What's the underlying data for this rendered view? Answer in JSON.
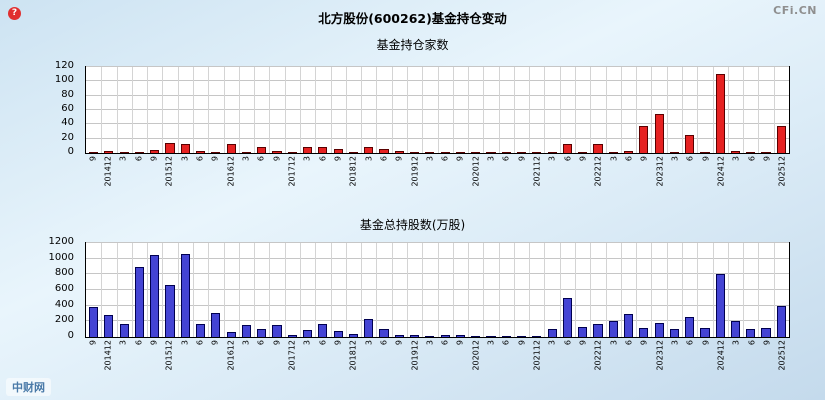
{
  "header": {
    "title": "北方股份(600262)基金持仓变动",
    "brand": "CFi.CN",
    "watermark": "中财网",
    "help_icon_glyph": "?"
  },
  "chart_data": [
    {
      "type": "bar",
      "title": "基金持仓家数",
      "xlabel": "",
      "ylabel": "",
      "ylim": [
        0,
        120
      ],
      "yticks": [
        0,
        20,
        40,
        60,
        80,
        100,
        120
      ],
      "grid": true,
      "legend": "none",
      "bar_color": "#e62222",
      "bar_border": "#5a0000",
      "categories": [
        "9",
        "201412",
        "3",
        "6",
        "9",
        "201512",
        "3",
        "6",
        "9",
        "201612",
        "3",
        "6",
        "9",
        "201712",
        "3",
        "6",
        "9",
        "201812",
        "3",
        "6",
        "9",
        "201912",
        "3",
        "6",
        "9",
        "202012",
        "3",
        "6",
        "9",
        "202112",
        "3",
        "6",
        "9",
        "202212",
        "3",
        "6",
        "9",
        "202312",
        "3",
        "6",
        "9",
        "202412",
        "3",
        "6",
        "9",
        "202512"
      ],
      "values": [
        2,
        3,
        1,
        2,
        4,
        14,
        12,
        3,
        1,
        13,
        2,
        8,
        3,
        1,
        9,
        8,
        5,
        2,
        8,
        5,
        3,
        2,
        1,
        1,
        2,
        2,
        1,
        1,
        1,
        1,
        2,
        12,
        2,
        12,
        2,
        3,
        38,
        55,
        2,
        25,
        2,
        110,
        3,
        2,
        2,
        38
      ]
    },
    {
      "type": "bar",
      "title": "基金总持股数(万股)",
      "xlabel": "",
      "ylabel": "",
      "ylim": [
        0,
        1200
      ],
      "yticks": [
        0,
        200,
        400,
        600,
        800,
        1000,
        1200
      ],
      "grid": true,
      "legend": "none",
      "bar_color": "#4444d4",
      "bar_border": "#000050",
      "categories": [
        "9",
        "201412",
        "3",
        "6",
        "9",
        "201512",
        "3",
        "6",
        "9",
        "201612",
        "3",
        "6",
        "9",
        "201712",
        "3",
        "6",
        "9",
        "201812",
        "3",
        "6",
        "9",
        "201912",
        "3",
        "6",
        "9",
        "202012",
        "3",
        "6",
        "9",
        "202112",
        "3",
        "6",
        "9",
        "202212",
        "3",
        "6",
        "9",
        "202312",
        "3",
        "6",
        "9",
        "202412",
        "3",
        "6",
        "9",
        "202512"
      ],
      "values": [
        380,
        280,
        170,
        900,
        1050,
        660,
        1060,
        170,
        310,
        60,
        150,
        100,
        150,
        30,
        90,
        160,
        80,
        40,
        230,
        100,
        30,
        20,
        15,
        20,
        25,
        15,
        10,
        10,
        10,
        15,
        100,
        500,
        130,
        160,
        200,
        290,
        120,
        180,
        100,
        250,
        120,
        800,
        210,
        100,
        120,
        390
      ]
    }
  ]
}
